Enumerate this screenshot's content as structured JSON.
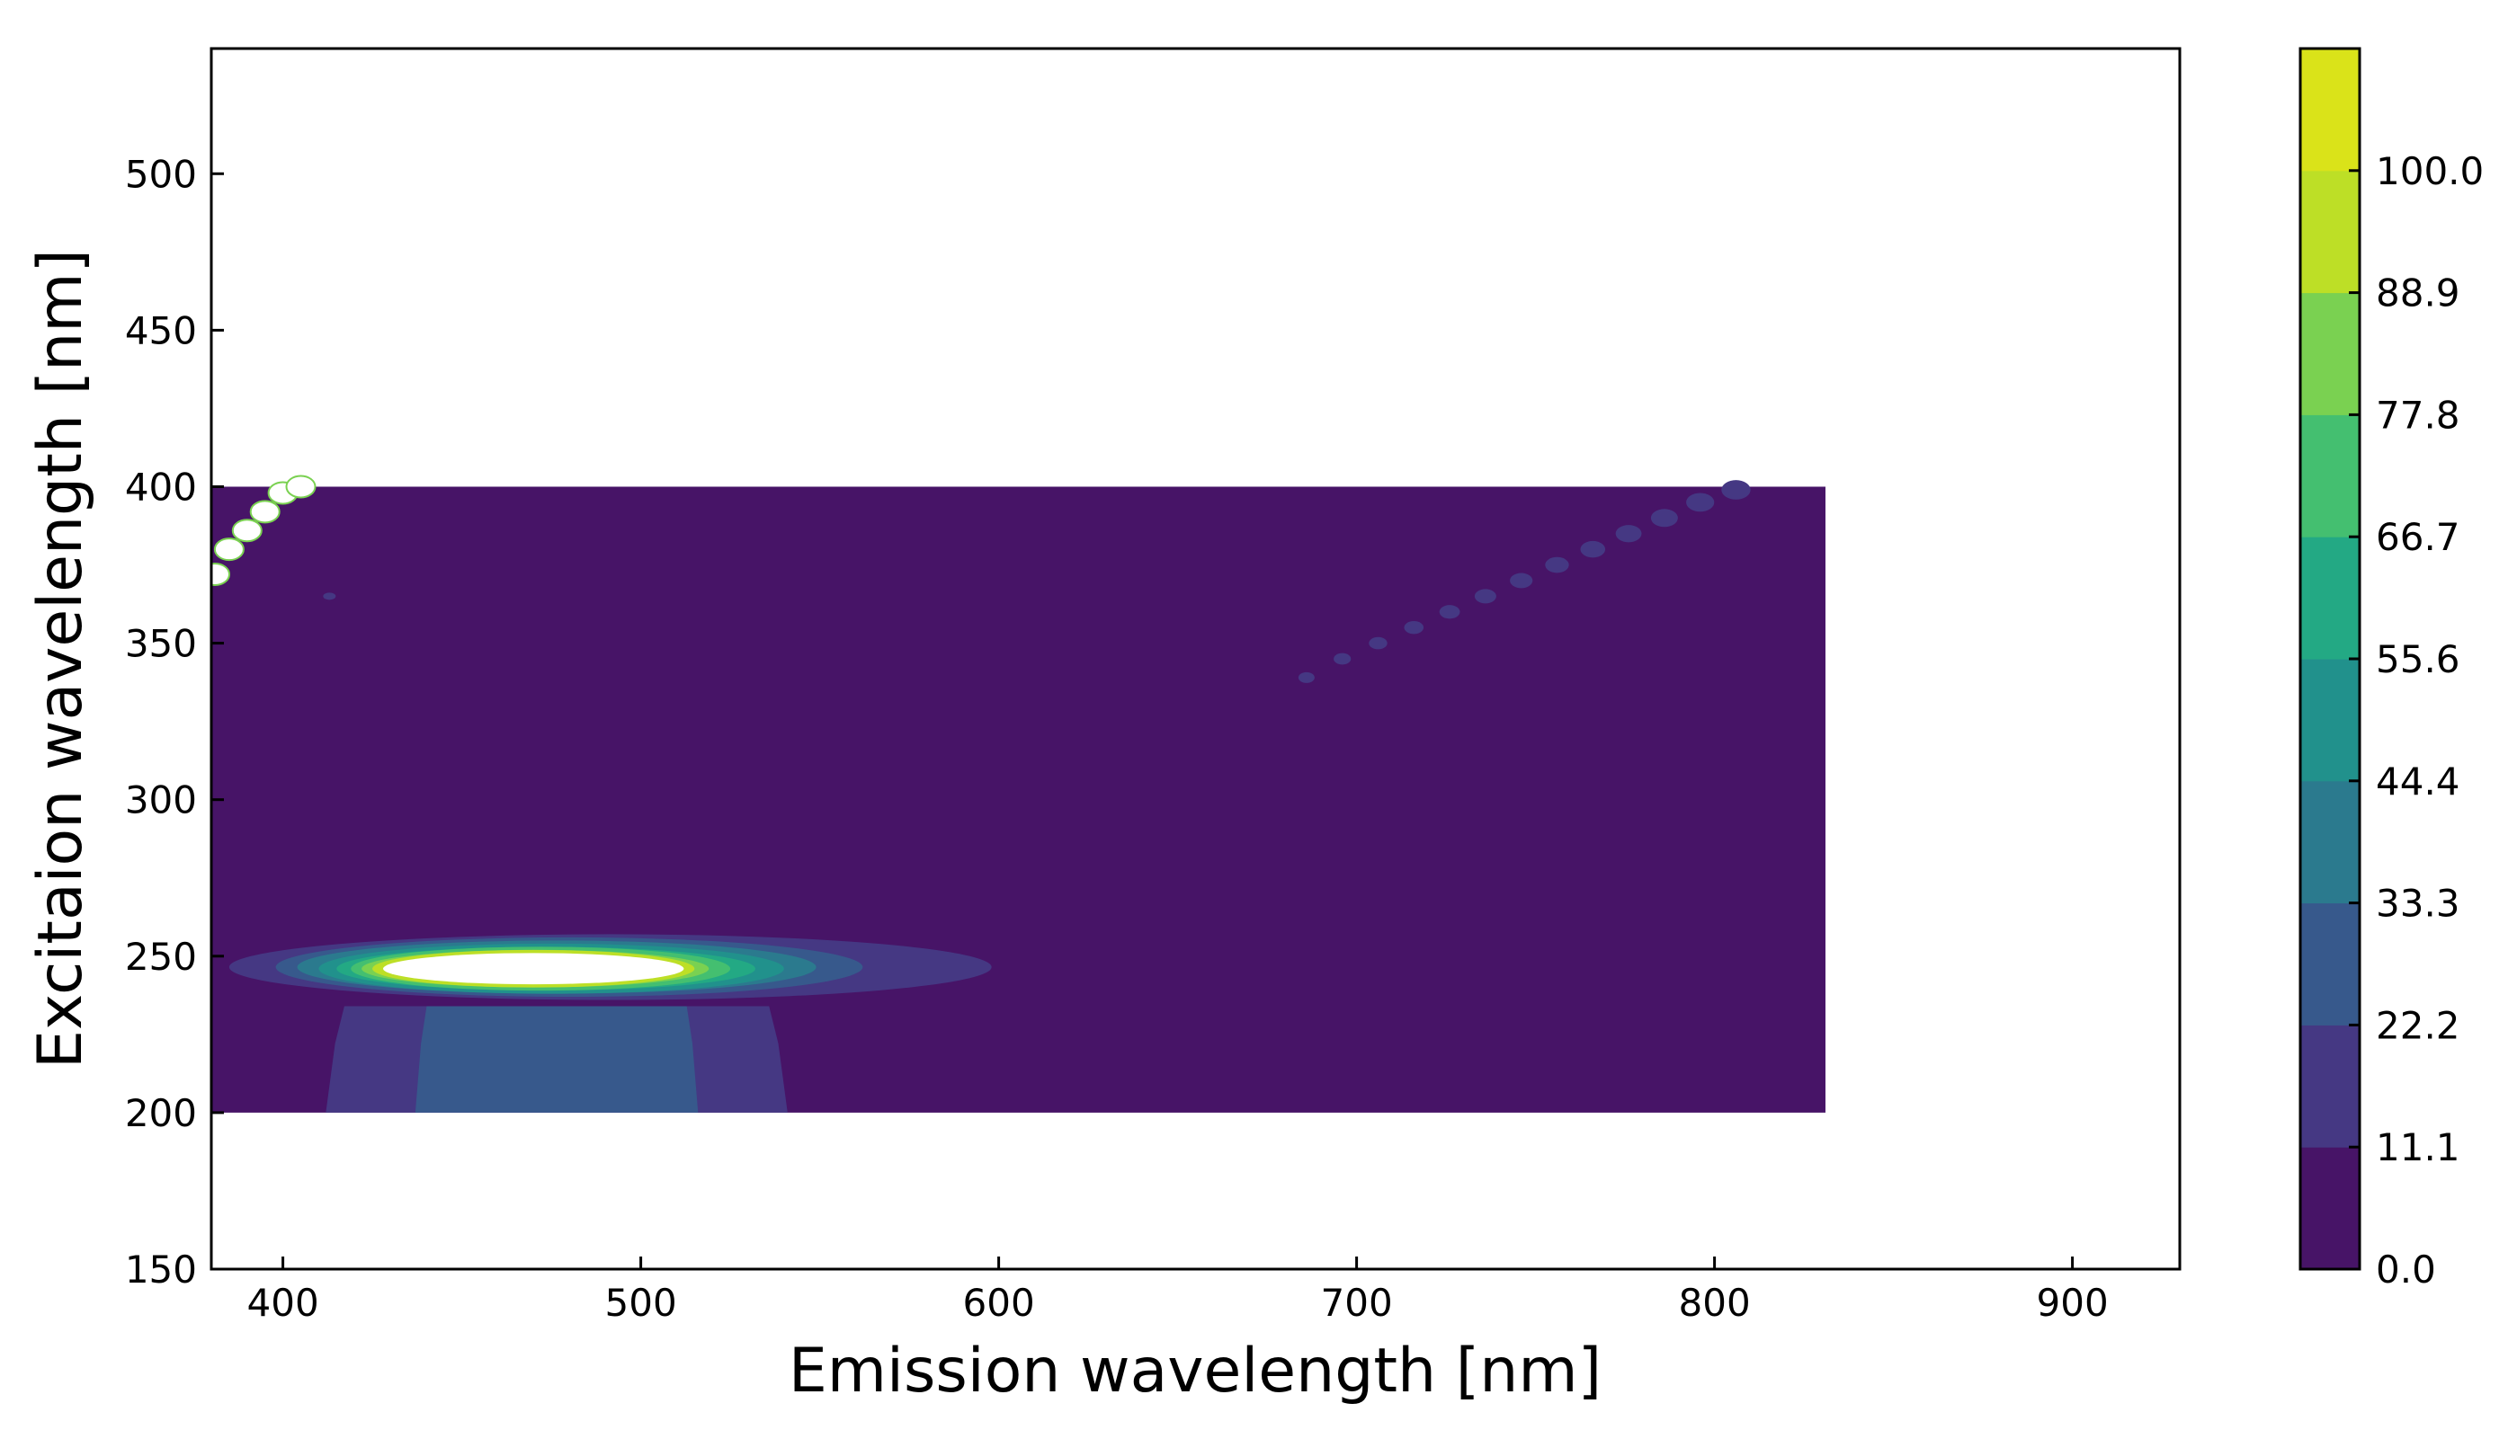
{
  "chart_data": {
    "type": "heatmap",
    "subtype": "filled-contour",
    "title": "",
    "xlabel": "Emission wavelength [nm]",
    "ylabel": "Excitaion wavelength [nm]",
    "xlim": [
      380,
      930
    ],
    "ylim": [
      150,
      540
    ],
    "x_ticks": [
      400,
      500,
      600,
      700,
      800,
      900
    ],
    "y_ticks": [
      150,
      200,
      250,
      300,
      350,
      400,
      450,
      500
    ],
    "x_tick_labels": [
      "400",
      "500",
      "600",
      "700",
      "800",
      "900"
    ],
    "y_tick_labels": [
      "150",
      "200",
      "250",
      "300",
      "350",
      "400",
      "450",
      "500"
    ],
    "data_extent": {
      "x": [
        380,
        831
      ],
      "y": [
        200,
        400
      ]
    },
    "background_level": 0.0,
    "colorbar": {
      "levels": [
        0.0,
        11.1,
        22.2,
        33.3,
        44.4,
        55.6,
        66.7,
        77.8,
        88.9,
        100.0
      ],
      "tick_labels": [
        "0.0",
        "11.1",
        "22.2",
        "33.3",
        "44.4",
        "55.6",
        "66.7",
        "77.8",
        "88.9",
        "100.0"
      ],
      "colors": [
        "#471467",
        "#453883",
        "#37598c",
        "#2b7a8e",
        "#21918c",
        "#23a984",
        "#44bf70",
        "#7ad151",
        "#bddf26",
        "#dae319"
      ]
    },
    "main_peak": {
      "center": [
        470,
        244
      ],
      "x_extent": [
        385,
        598
      ],
      "y_extent": [
        231,
        258
      ],
      "contours": [
        {
          "level": 11.1,
          "x": [
            385,
            598
          ],
          "y": [
            236,
            257
          ]
        },
        {
          "level": 22.2,
          "x": [
            398,
            562
          ],
          "y": [
            237,
            256
          ]
        },
        {
          "level": 33.3,
          "x": [
            404,
            549
          ],
          "y": [
            238,
            255
          ]
        },
        {
          "level": 44.4,
          "x": [
            410,
            540
          ],
          "y": [
            238,
            254
          ]
        },
        {
          "level": 55.6,
          "x": [
            415,
            532
          ],
          "y": [
            239,
            253
          ]
        },
        {
          "level": 66.7,
          "x": [
            419,
            525
          ],
          "y": [
            239,
            253
          ]
        },
        {
          "level": 77.8,
          "x": [
            422,
            519
          ],
          "y": [
            240,
            252
          ]
        },
        {
          "level": 88.9,
          "x": [
            425,
            515
          ],
          "y": [
            240,
            252
          ]
        },
        {
          "level": 100.0,
          "x": [
            428,
            512
          ],
          "y": [
            241,
            251
          ]
        }
      ],
      "tails": [
        {
          "level": 11.1,
          "x": [
            412,
            541
          ],
          "y": [
            200,
            234
          ]
        },
        {
          "level": 22.2,
          "x": [
            437,
            516
          ],
          "y": [
            200,
            234
          ]
        }
      ]
    },
    "scatter_line_upper_left": {
      "description_level": 100.0,
      "points": [
        [
          381,
          372
        ],
        [
          385,
          380
        ],
        [
          390,
          386
        ],
        [
          395,
          392
        ],
        [
          400,
          398
        ],
        [
          405,
          400
        ]
      ]
    },
    "rayleigh_second_order_line": {
      "level": 11.1,
      "points": [
        [
          686,
          339
        ],
        [
          696,
          345
        ],
        [
          706,
          350
        ],
        [
          716,
          355
        ],
        [
          726,
          360
        ],
        [
          736,
          365
        ],
        [
          746,
          370
        ],
        [
          756,
          375
        ],
        [
          766,
          380
        ],
        [
          776,
          385
        ],
        [
          786,
          390
        ],
        [
          796,
          395
        ],
        [
          806,
          399
        ]
      ]
    },
    "small_spot": {
      "level": 11.1,
      "point": [
        413,
        365
      ]
    }
  }
}
